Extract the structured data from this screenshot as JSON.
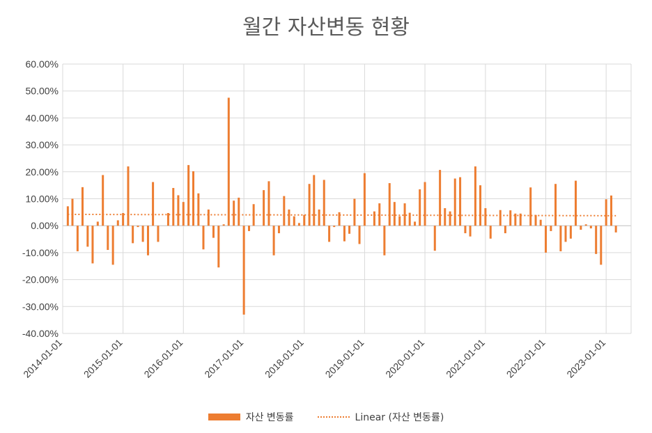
{
  "colors": {
    "bar": "#ED7D31",
    "grid": "#D9D9D9",
    "text": "#595959"
  },
  "chart_data": {
    "type": "bar",
    "title": "월간 자산변동 현황",
    "xlabel": "",
    "ylabel": "",
    "ylim": [
      -0.4,
      0.6
    ],
    "xlim": [
      "2014-01-01",
      "2023-06-01"
    ],
    "grid": true,
    "legend_position": "bottom",
    "y_ticks": [
      "60.00%",
      "50.00%",
      "40.00%",
      "30.00%",
      "20.00%",
      "10.00%",
      "0.00%",
      "-10.00%",
      "-20.00%",
      "-30.00%",
      "-40.00%"
    ],
    "x_ticks": [
      "2014-01-01",
      "2015-01-01",
      "2016-01-01",
      "2017-01-01",
      "2018-01-01",
      "2019-01-01",
      "2020-01-01",
      "2021-01-01",
      "2022-01-01",
      "2023-01-01"
    ],
    "series": [
      {
        "name": "자산 변동률",
        "kind": "bar",
        "x": [
          "2014-02-01",
          "2014-03-01",
          "2014-04-01",
          "2014-05-01",
          "2014-06-01",
          "2014-07-01",
          "2014-08-01",
          "2014-09-01",
          "2014-10-01",
          "2014-11-01",
          "2014-12-01",
          "2015-01-01",
          "2015-02-01",
          "2015-03-01",
          "2015-04-01",
          "2015-05-01",
          "2015-06-01",
          "2015-07-01",
          "2015-08-01",
          "2015-09-01",
          "2015-10-01",
          "2015-11-01",
          "2015-12-01",
          "2016-01-01",
          "2016-02-01",
          "2016-03-01",
          "2016-04-01",
          "2016-05-01",
          "2016-06-01",
          "2016-07-01",
          "2016-08-01",
          "2016-09-01",
          "2016-10-01",
          "2016-11-01",
          "2016-12-01",
          "2017-01-01",
          "2017-02-01",
          "2017-03-01",
          "2017-04-01",
          "2017-05-01",
          "2017-06-01",
          "2017-07-01",
          "2017-08-01",
          "2017-09-01",
          "2017-10-01",
          "2017-11-01",
          "2017-12-01",
          "2018-01-01",
          "2018-02-01",
          "2018-03-01",
          "2018-04-01",
          "2018-05-01",
          "2018-06-01",
          "2018-07-01",
          "2018-08-01",
          "2018-09-01",
          "2018-10-01",
          "2018-11-01",
          "2018-12-01",
          "2019-01-01",
          "2019-02-01",
          "2019-03-01",
          "2019-04-01",
          "2019-05-01",
          "2019-06-01",
          "2019-07-01",
          "2019-08-01",
          "2019-09-01",
          "2019-10-01",
          "2019-11-01",
          "2019-12-01",
          "2020-01-01",
          "2020-02-01",
          "2020-03-01",
          "2020-04-01",
          "2020-05-01",
          "2020-06-01",
          "2020-07-01",
          "2020-08-01",
          "2020-09-01",
          "2020-10-01",
          "2020-11-01",
          "2020-12-01",
          "2021-01-01",
          "2021-02-01",
          "2021-03-01",
          "2021-04-01",
          "2021-05-01",
          "2021-06-01",
          "2021-07-01",
          "2021-08-01",
          "2021-09-01",
          "2021-10-01",
          "2021-11-01",
          "2021-12-01",
          "2022-01-01",
          "2022-02-01",
          "2022-03-01",
          "2022-04-01",
          "2022-05-01",
          "2022-06-01",
          "2022-07-01",
          "2022-08-01",
          "2022-09-01",
          "2022-10-01",
          "2022-11-01",
          "2022-12-01",
          "2023-01-01",
          "2023-02-01",
          "2023-03-01"
        ],
        "values": [
          0.072,
          0.1,
          -0.095,
          0.143,
          -0.078,
          -0.14,
          0.015,
          0.188,
          -0.09,
          -0.145,
          0.02,
          0.047,
          0.22,
          -0.065,
          -0.005,
          -0.06,
          -0.11,
          0.162,
          -0.06,
          0.0,
          0.047,
          0.14,
          0.113,
          0.088,
          0.225,
          0.202,
          0.12,
          -0.088,
          0.06,
          -0.045,
          -0.155,
          0.005,
          0.475,
          0.093,
          0.104,
          -0.33,
          -0.02,
          0.08,
          0.0,
          0.132,
          0.165,
          -0.11,
          -0.028,
          0.11,
          0.06,
          0.035,
          0.01,
          0.04,
          0.155,
          0.188,
          0.06,
          0.17,
          -0.06,
          -0.005,
          0.05,
          -0.058,
          -0.03,
          0.1,
          -0.068,
          0.195,
          0.0,
          0.053,
          0.083,
          -0.11,
          0.158,
          0.088,
          0.035,
          0.083,
          0.048,
          0.015,
          0.135,
          0.162,
          0.0,
          -0.093,
          0.207,
          0.065,
          0.053,
          0.175,
          0.18,
          -0.028,
          -0.04,
          0.22,
          0.15,
          0.065,
          -0.048,
          0.0,
          0.058,
          -0.028,
          0.057,
          0.045,
          0.045,
          0.0,
          0.142,
          0.04,
          0.022,
          -0.1,
          -0.02,
          0.155,
          -0.095,
          -0.06,
          -0.048,
          0.167,
          -0.015,
          0.005,
          -0.01,
          -0.105,
          -0.145,
          0.098,
          0.112,
          -0.025
        ]
      },
      {
        "name": "Linear (자산 변동률)",
        "kind": "trendline",
        "x": [
          "2014-02-01",
          "2023-03-01"
        ],
        "values": [
          0.042,
          0.037
        ]
      }
    ]
  }
}
